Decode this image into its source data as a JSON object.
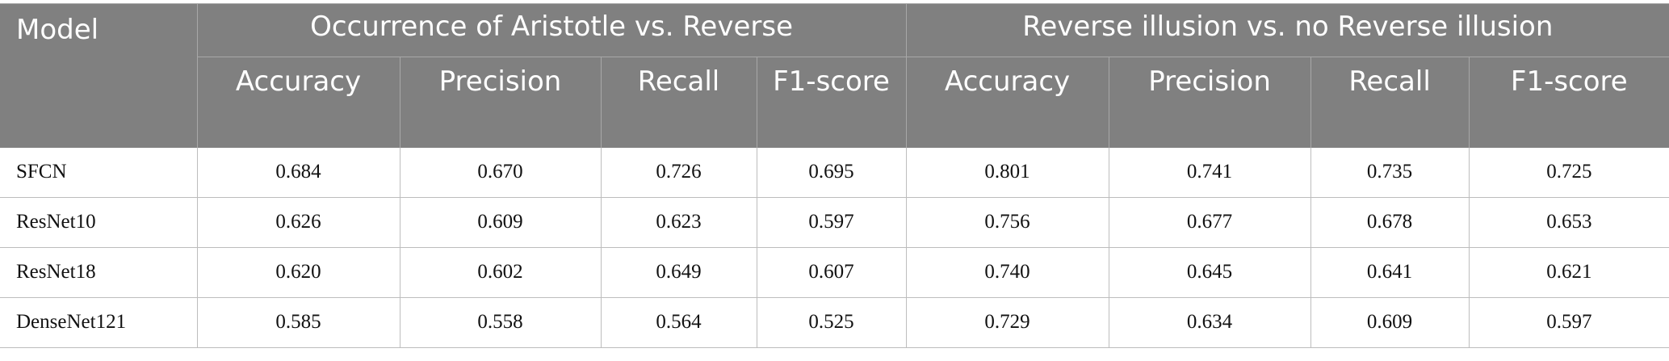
{
  "headers": {
    "model": "Model",
    "group1": "Occurrence of Aristotle vs. Reverse",
    "group2": "Reverse illusion vs. no Reverse illusion",
    "g1_cols": [
      "Accuracy",
      "Precision",
      "Recall",
      "F1-score"
    ],
    "g2_cols": [
      "Accuracy",
      "Precision",
      "Recall",
      "F1-score"
    ]
  },
  "rows": [
    {
      "model": "SFCN",
      "values": [
        "0.684",
        "0.670",
        "0.726",
        "0.695",
        "0.801",
        "0.741",
        "0.735",
        "0.725"
      ]
    },
    {
      "model": "ResNet10",
      "values": [
        "0.626",
        "0.609",
        "0.623",
        "0.597",
        "0.756",
        "0.677",
        "0.678",
        "0.653"
      ]
    },
    {
      "model": "ResNet18",
      "values": [
        "0.620",
        "0.602",
        "0.649",
        "0.607",
        "0.740",
        "0.645",
        "0.641",
        "0.621"
      ]
    },
    {
      "model": "DenseNet121",
      "values": [
        "0.585",
        "0.558",
        "0.564",
        "0.525",
        "0.729",
        "0.634",
        "0.609",
        "0.597"
      ]
    }
  ],
  "colors": {
    "header_bg": "#808080",
    "header_text": "#ffffff",
    "grid": "#bdbdbd"
  }
}
